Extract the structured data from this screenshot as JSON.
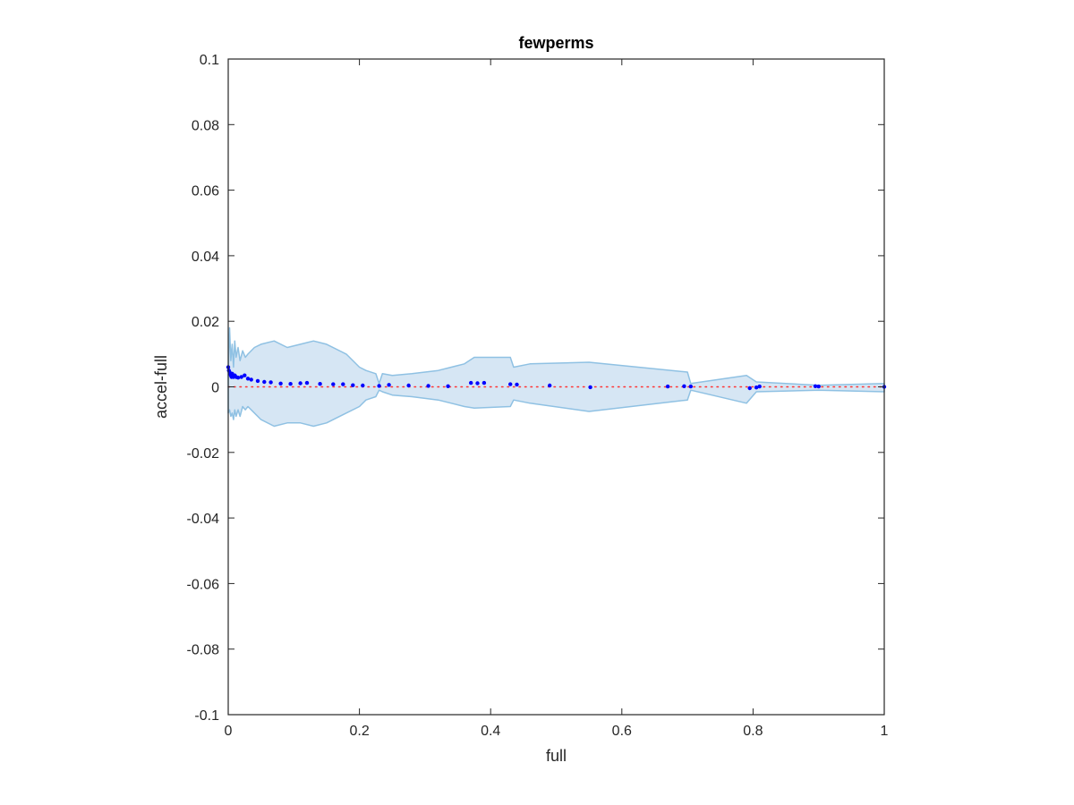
{
  "chart_data": {
    "type": "scatter",
    "title": "fewperms",
    "xlabel": "full",
    "ylabel": "accel-full",
    "xlim": [
      0,
      1
    ],
    "ylim": [
      -0.1,
      0.1
    ],
    "x_ticks": [
      "0",
      "0.2",
      "0.4",
      "0.6",
      "0.8",
      "1"
    ],
    "y_ticks": [
      "-0.1",
      "-0.08",
      "-0.06",
      "-0.04",
      "-0.02",
      "0",
      "0.02",
      "0.04",
      "0.06",
      "0.08",
      "0.1"
    ],
    "grid": false,
    "colors": {
      "points": "#0000ff",
      "band_fill": "#d6e6f4",
      "band_edge": "#8fc1e3",
      "reference_line": "#ff3333",
      "axes": "#262626"
    },
    "reference_line": {
      "y": 0,
      "style": "dotted"
    },
    "band_upper": [
      [
        0.0,
        0.005
      ],
      [
        0.002,
        0.018
      ],
      [
        0.004,
        0.008
      ],
      [
        0.006,
        0.013
      ],
      [
        0.008,
        0.006
      ],
      [
        0.01,
        0.014
      ],
      [
        0.012,
        0.009
      ],
      [
        0.015,
        0.012
      ],
      [
        0.018,
        0.008
      ],
      [
        0.022,
        0.011
      ],
      [
        0.026,
        0.009
      ],
      [
        0.03,
        0.01
      ],
      [
        0.04,
        0.012
      ],
      [
        0.05,
        0.013
      ],
      [
        0.07,
        0.014
      ],
      [
        0.09,
        0.012
      ],
      [
        0.11,
        0.013
      ],
      [
        0.13,
        0.014
      ],
      [
        0.15,
        0.013
      ],
      [
        0.18,
        0.01
      ],
      [
        0.2,
        0.006
      ],
      [
        0.21,
        0.005
      ],
      [
        0.225,
        0.004
      ],
      [
        0.23,
        0.001
      ],
      [
        0.235,
        0.004
      ],
      [
        0.25,
        0.0035
      ],
      [
        0.28,
        0.004
      ],
      [
        0.32,
        0.005
      ],
      [
        0.36,
        0.007
      ],
      [
        0.375,
        0.009
      ],
      [
        0.43,
        0.009
      ],
      [
        0.435,
        0.006
      ],
      [
        0.46,
        0.007
      ],
      [
        0.55,
        0.0075
      ],
      [
        0.7,
        0.0045
      ],
      [
        0.705,
        0.001
      ],
      [
        0.79,
        0.0035
      ],
      [
        0.805,
        0.0015
      ],
      [
        0.9,
        0.0005
      ],
      [
        1.0,
        0.001
      ]
    ],
    "band_lower": [
      [
        0.0,
        -0.008
      ],
      [
        0.002,
        -0.007
      ],
      [
        0.004,
        -0.009
      ],
      [
        0.006,
        -0.008
      ],
      [
        0.008,
        -0.01
      ],
      [
        0.01,
        -0.007
      ],
      [
        0.012,
        -0.009
      ],
      [
        0.015,
        -0.007
      ],
      [
        0.018,
        -0.009
      ],
      [
        0.022,
        -0.006
      ],
      [
        0.026,
        -0.007
      ],
      [
        0.03,
        -0.006
      ],
      [
        0.04,
        -0.008
      ],
      [
        0.05,
        -0.01
      ],
      [
        0.07,
        -0.012
      ],
      [
        0.09,
        -0.011
      ],
      [
        0.11,
        -0.011
      ],
      [
        0.13,
        -0.012
      ],
      [
        0.15,
        -0.011
      ],
      [
        0.18,
        -0.008
      ],
      [
        0.2,
        -0.006
      ],
      [
        0.21,
        -0.004
      ],
      [
        0.225,
        -0.003
      ],
      [
        0.23,
        -0.001
      ],
      [
        0.235,
        -0.0015
      ],
      [
        0.25,
        -0.0025
      ],
      [
        0.28,
        -0.003
      ],
      [
        0.32,
        -0.004
      ],
      [
        0.36,
        -0.006
      ],
      [
        0.375,
        -0.0065
      ],
      [
        0.43,
        -0.006
      ],
      [
        0.435,
        -0.004
      ],
      [
        0.46,
        -0.005
      ],
      [
        0.55,
        -0.0075
      ],
      [
        0.7,
        -0.004
      ],
      [
        0.705,
        -0.001
      ],
      [
        0.79,
        -0.005
      ],
      [
        0.805,
        -0.0015
      ],
      [
        0.9,
        -0.001
      ],
      [
        1.0,
        -0.0015
      ]
    ],
    "points": [
      [
        0.0,
        0.006
      ],
      [
        0.001,
        0.005
      ],
      [
        0.002,
        0.0045
      ],
      [
        0.003,
        0.004
      ],
      [
        0.004,
        0.0035
      ],
      [
        0.005,
        0.003
      ],
      [
        0.006,
        0.004
      ],
      [
        0.008,
        0.003
      ],
      [
        0.01,
        0.0035
      ],
      [
        0.012,
        0.003
      ],
      [
        0.015,
        0.0028
      ],
      [
        0.02,
        0.003
      ],
      [
        0.025,
        0.0035
      ],
      [
        0.03,
        0.0025
      ],
      [
        0.035,
        0.0022
      ],
      [
        0.045,
        0.0018
      ],
      [
        0.055,
        0.0015
      ],
      [
        0.065,
        0.0014
      ],
      [
        0.08,
        0.001
      ],
      [
        0.095,
        0.0009
      ],
      [
        0.11,
        0.0011
      ],
      [
        0.12,
        0.0012
      ],
      [
        0.14,
        0.0009
      ],
      [
        0.16,
        0.0008
      ],
      [
        0.175,
        0.0008
      ],
      [
        0.19,
        0.0005
      ],
      [
        0.205,
        0.0004
      ],
      [
        0.23,
        0.0003
      ],
      [
        0.245,
        0.0006
      ],
      [
        0.275,
        0.0004
      ],
      [
        0.305,
        0.0003
      ],
      [
        0.335,
        0.0002
      ],
      [
        0.37,
        0.0012
      ],
      [
        0.38,
        0.0011
      ],
      [
        0.39,
        0.0012
      ],
      [
        0.43,
        0.0008
      ],
      [
        0.44,
        0.0007
      ],
      [
        0.49,
        0.0004
      ],
      [
        0.552,
        -0.0001
      ],
      [
        0.67,
        0.0001
      ],
      [
        0.695,
        0.0002
      ],
      [
        0.705,
        0.0001
      ],
      [
        0.795,
        -0.0004
      ],
      [
        0.805,
        -0.0002
      ],
      [
        0.81,
        0.0001
      ],
      [
        0.895,
        0.0002
      ],
      [
        0.9,
        0.0001
      ],
      [
        1.0,
        0.0
      ]
    ]
  }
}
